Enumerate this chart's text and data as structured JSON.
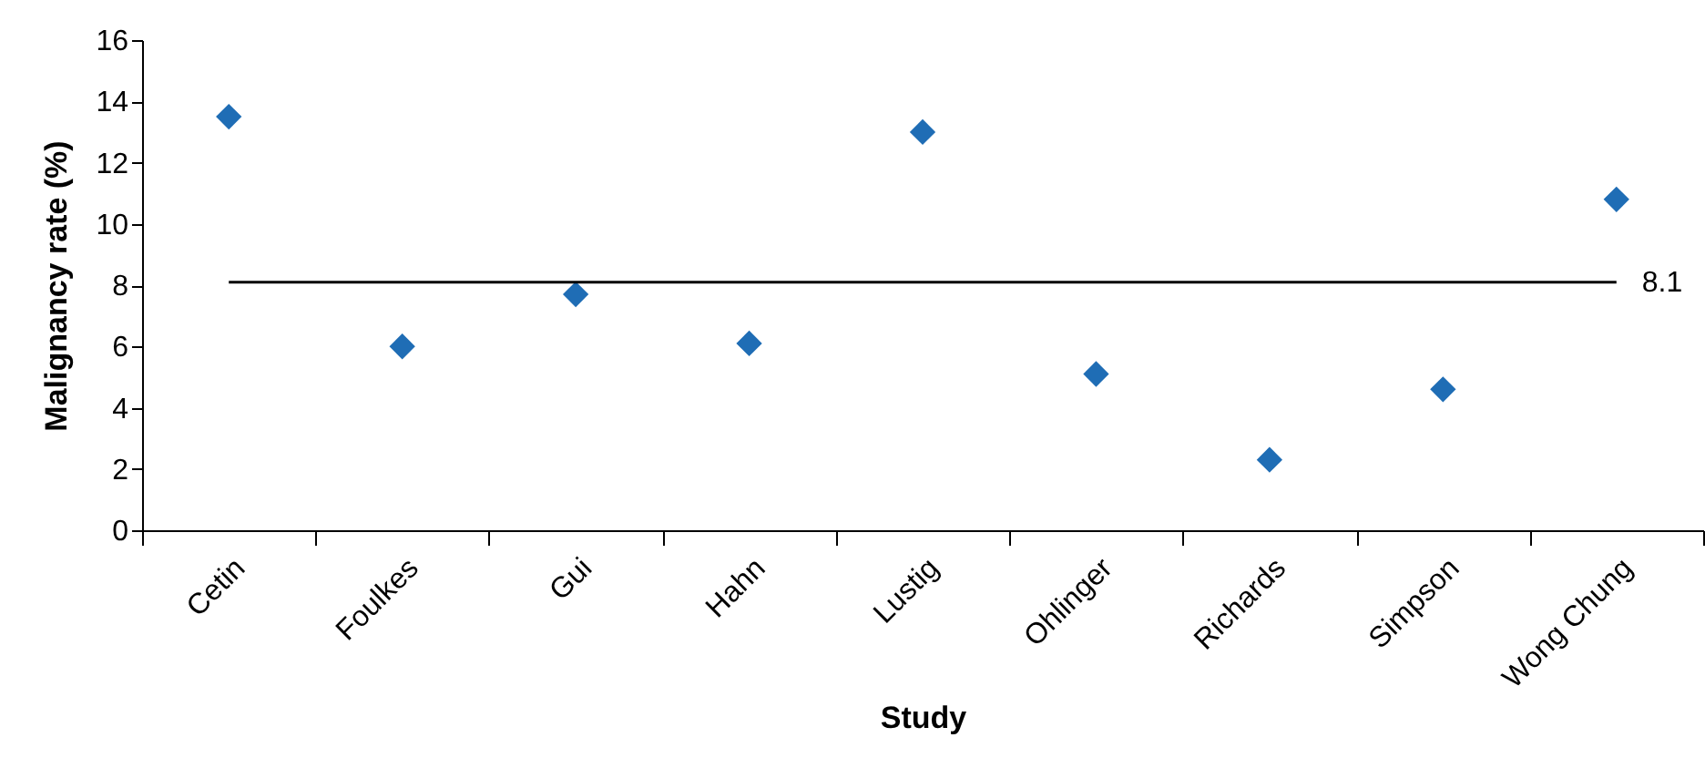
{
  "chart_data": {
    "type": "scatter",
    "xlabel": "Study",
    "ylabel": "Malignancy rate (%)",
    "categories": [
      "Cetin",
      "Foulkes",
      "Gui",
      "Hahn",
      "Lustig",
      "Ohlinger",
      "Richards",
      "Simpson",
      "Wong Chung"
    ],
    "series": [
      {
        "color": "#1f6db5",
        "values": [
          13.5,
          6.0,
          7.7,
          6.1,
          13.0,
          5.1,
          2.3,
          4.6,
          10.8
        ]
      }
    ],
    "ylim": [
      0,
      16
    ],
    "yticks": [
      0,
      2,
      4,
      6,
      8,
      10,
      12,
      14,
      16
    ],
    "grid": false,
    "marker": "diamond",
    "ref_lines": [
      {
        "axis": "y",
        "value": 8.1,
        "label": "8.1",
        "color": "#000000"
      }
    ]
  }
}
